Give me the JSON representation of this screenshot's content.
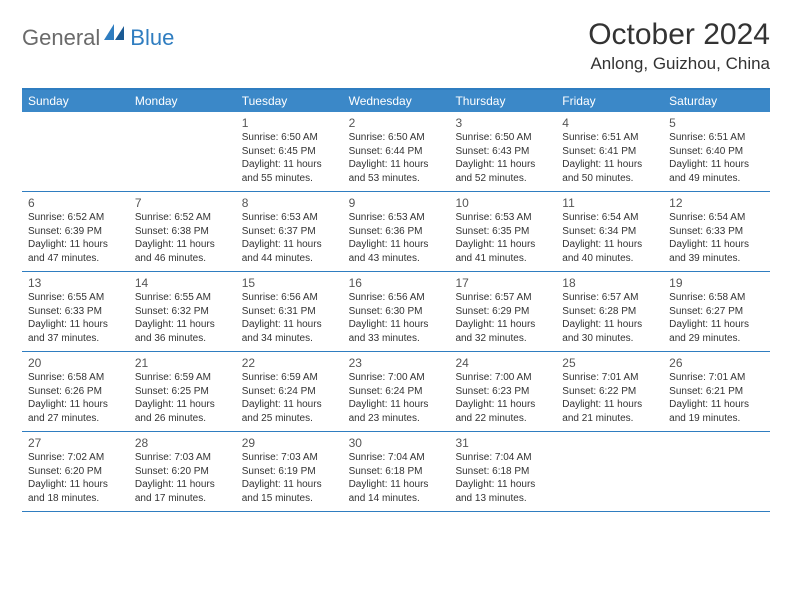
{
  "brand": {
    "part1": "General",
    "part2": "Blue"
  },
  "title": "October 2024",
  "location": "Anlong, Guizhou, China",
  "colors": {
    "header_bg": "#3b88c8",
    "header_text": "#ffffff",
    "rule": "#2f7dc0",
    "body_bg": "#ffffff",
    "text": "#333333",
    "logo_gray": "#6a6a6a",
    "logo_blue": "#2f7dc0"
  },
  "typography": {
    "title_fontsize": 30,
    "location_fontsize": 17,
    "dayheader_fontsize": 12,
    "daynum_fontsize": 12,
    "info_fontsize": 10
  },
  "day_headers": [
    "Sunday",
    "Monday",
    "Tuesday",
    "Wednesday",
    "Thursday",
    "Friday",
    "Saturday"
  ],
  "weeks": [
    [
      null,
      null,
      {
        "n": "1",
        "sr": "Sunrise: 6:50 AM",
        "ss": "Sunset: 6:45 PM",
        "dl1": "Daylight: 11 hours",
        "dl2": "and 55 minutes."
      },
      {
        "n": "2",
        "sr": "Sunrise: 6:50 AM",
        "ss": "Sunset: 6:44 PM",
        "dl1": "Daylight: 11 hours",
        "dl2": "and 53 minutes."
      },
      {
        "n": "3",
        "sr": "Sunrise: 6:50 AM",
        "ss": "Sunset: 6:43 PM",
        "dl1": "Daylight: 11 hours",
        "dl2": "and 52 minutes."
      },
      {
        "n": "4",
        "sr": "Sunrise: 6:51 AM",
        "ss": "Sunset: 6:41 PM",
        "dl1": "Daylight: 11 hours",
        "dl2": "and 50 minutes."
      },
      {
        "n": "5",
        "sr": "Sunrise: 6:51 AM",
        "ss": "Sunset: 6:40 PM",
        "dl1": "Daylight: 11 hours",
        "dl2": "and 49 minutes."
      }
    ],
    [
      {
        "n": "6",
        "sr": "Sunrise: 6:52 AM",
        "ss": "Sunset: 6:39 PM",
        "dl1": "Daylight: 11 hours",
        "dl2": "and 47 minutes."
      },
      {
        "n": "7",
        "sr": "Sunrise: 6:52 AM",
        "ss": "Sunset: 6:38 PM",
        "dl1": "Daylight: 11 hours",
        "dl2": "and 46 minutes."
      },
      {
        "n": "8",
        "sr": "Sunrise: 6:53 AM",
        "ss": "Sunset: 6:37 PM",
        "dl1": "Daylight: 11 hours",
        "dl2": "and 44 minutes."
      },
      {
        "n": "9",
        "sr": "Sunrise: 6:53 AM",
        "ss": "Sunset: 6:36 PM",
        "dl1": "Daylight: 11 hours",
        "dl2": "and 43 minutes."
      },
      {
        "n": "10",
        "sr": "Sunrise: 6:53 AM",
        "ss": "Sunset: 6:35 PM",
        "dl1": "Daylight: 11 hours",
        "dl2": "and 41 minutes."
      },
      {
        "n": "11",
        "sr": "Sunrise: 6:54 AM",
        "ss": "Sunset: 6:34 PM",
        "dl1": "Daylight: 11 hours",
        "dl2": "and 40 minutes."
      },
      {
        "n": "12",
        "sr": "Sunrise: 6:54 AM",
        "ss": "Sunset: 6:33 PM",
        "dl1": "Daylight: 11 hours",
        "dl2": "and 39 minutes."
      }
    ],
    [
      {
        "n": "13",
        "sr": "Sunrise: 6:55 AM",
        "ss": "Sunset: 6:33 PM",
        "dl1": "Daylight: 11 hours",
        "dl2": "and 37 minutes."
      },
      {
        "n": "14",
        "sr": "Sunrise: 6:55 AM",
        "ss": "Sunset: 6:32 PM",
        "dl1": "Daylight: 11 hours",
        "dl2": "and 36 minutes."
      },
      {
        "n": "15",
        "sr": "Sunrise: 6:56 AM",
        "ss": "Sunset: 6:31 PM",
        "dl1": "Daylight: 11 hours",
        "dl2": "and 34 minutes."
      },
      {
        "n": "16",
        "sr": "Sunrise: 6:56 AM",
        "ss": "Sunset: 6:30 PM",
        "dl1": "Daylight: 11 hours",
        "dl2": "and 33 minutes."
      },
      {
        "n": "17",
        "sr": "Sunrise: 6:57 AM",
        "ss": "Sunset: 6:29 PM",
        "dl1": "Daylight: 11 hours",
        "dl2": "and 32 minutes."
      },
      {
        "n": "18",
        "sr": "Sunrise: 6:57 AM",
        "ss": "Sunset: 6:28 PM",
        "dl1": "Daylight: 11 hours",
        "dl2": "and 30 minutes."
      },
      {
        "n": "19",
        "sr": "Sunrise: 6:58 AM",
        "ss": "Sunset: 6:27 PM",
        "dl1": "Daylight: 11 hours",
        "dl2": "and 29 minutes."
      }
    ],
    [
      {
        "n": "20",
        "sr": "Sunrise: 6:58 AM",
        "ss": "Sunset: 6:26 PM",
        "dl1": "Daylight: 11 hours",
        "dl2": "and 27 minutes."
      },
      {
        "n": "21",
        "sr": "Sunrise: 6:59 AM",
        "ss": "Sunset: 6:25 PM",
        "dl1": "Daylight: 11 hours",
        "dl2": "and 26 minutes."
      },
      {
        "n": "22",
        "sr": "Sunrise: 6:59 AM",
        "ss": "Sunset: 6:24 PM",
        "dl1": "Daylight: 11 hours",
        "dl2": "and 25 minutes."
      },
      {
        "n": "23",
        "sr": "Sunrise: 7:00 AM",
        "ss": "Sunset: 6:24 PM",
        "dl1": "Daylight: 11 hours",
        "dl2": "and 23 minutes."
      },
      {
        "n": "24",
        "sr": "Sunrise: 7:00 AM",
        "ss": "Sunset: 6:23 PM",
        "dl1": "Daylight: 11 hours",
        "dl2": "and 22 minutes."
      },
      {
        "n": "25",
        "sr": "Sunrise: 7:01 AM",
        "ss": "Sunset: 6:22 PM",
        "dl1": "Daylight: 11 hours",
        "dl2": "and 21 minutes."
      },
      {
        "n": "26",
        "sr": "Sunrise: 7:01 AM",
        "ss": "Sunset: 6:21 PM",
        "dl1": "Daylight: 11 hours",
        "dl2": "and 19 minutes."
      }
    ],
    [
      {
        "n": "27",
        "sr": "Sunrise: 7:02 AM",
        "ss": "Sunset: 6:20 PM",
        "dl1": "Daylight: 11 hours",
        "dl2": "and 18 minutes."
      },
      {
        "n": "28",
        "sr": "Sunrise: 7:03 AM",
        "ss": "Sunset: 6:20 PM",
        "dl1": "Daylight: 11 hours",
        "dl2": "and 17 minutes."
      },
      {
        "n": "29",
        "sr": "Sunrise: 7:03 AM",
        "ss": "Sunset: 6:19 PM",
        "dl1": "Daylight: 11 hours",
        "dl2": "and 15 minutes."
      },
      {
        "n": "30",
        "sr": "Sunrise: 7:04 AM",
        "ss": "Sunset: 6:18 PM",
        "dl1": "Daylight: 11 hours",
        "dl2": "and 14 minutes."
      },
      {
        "n": "31",
        "sr": "Sunrise: 7:04 AM",
        "ss": "Sunset: 6:18 PM",
        "dl1": "Daylight: 11 hours",
        "dl2": "and 13 minutes."
      },
      null,
      null
    ]
  ]
}
